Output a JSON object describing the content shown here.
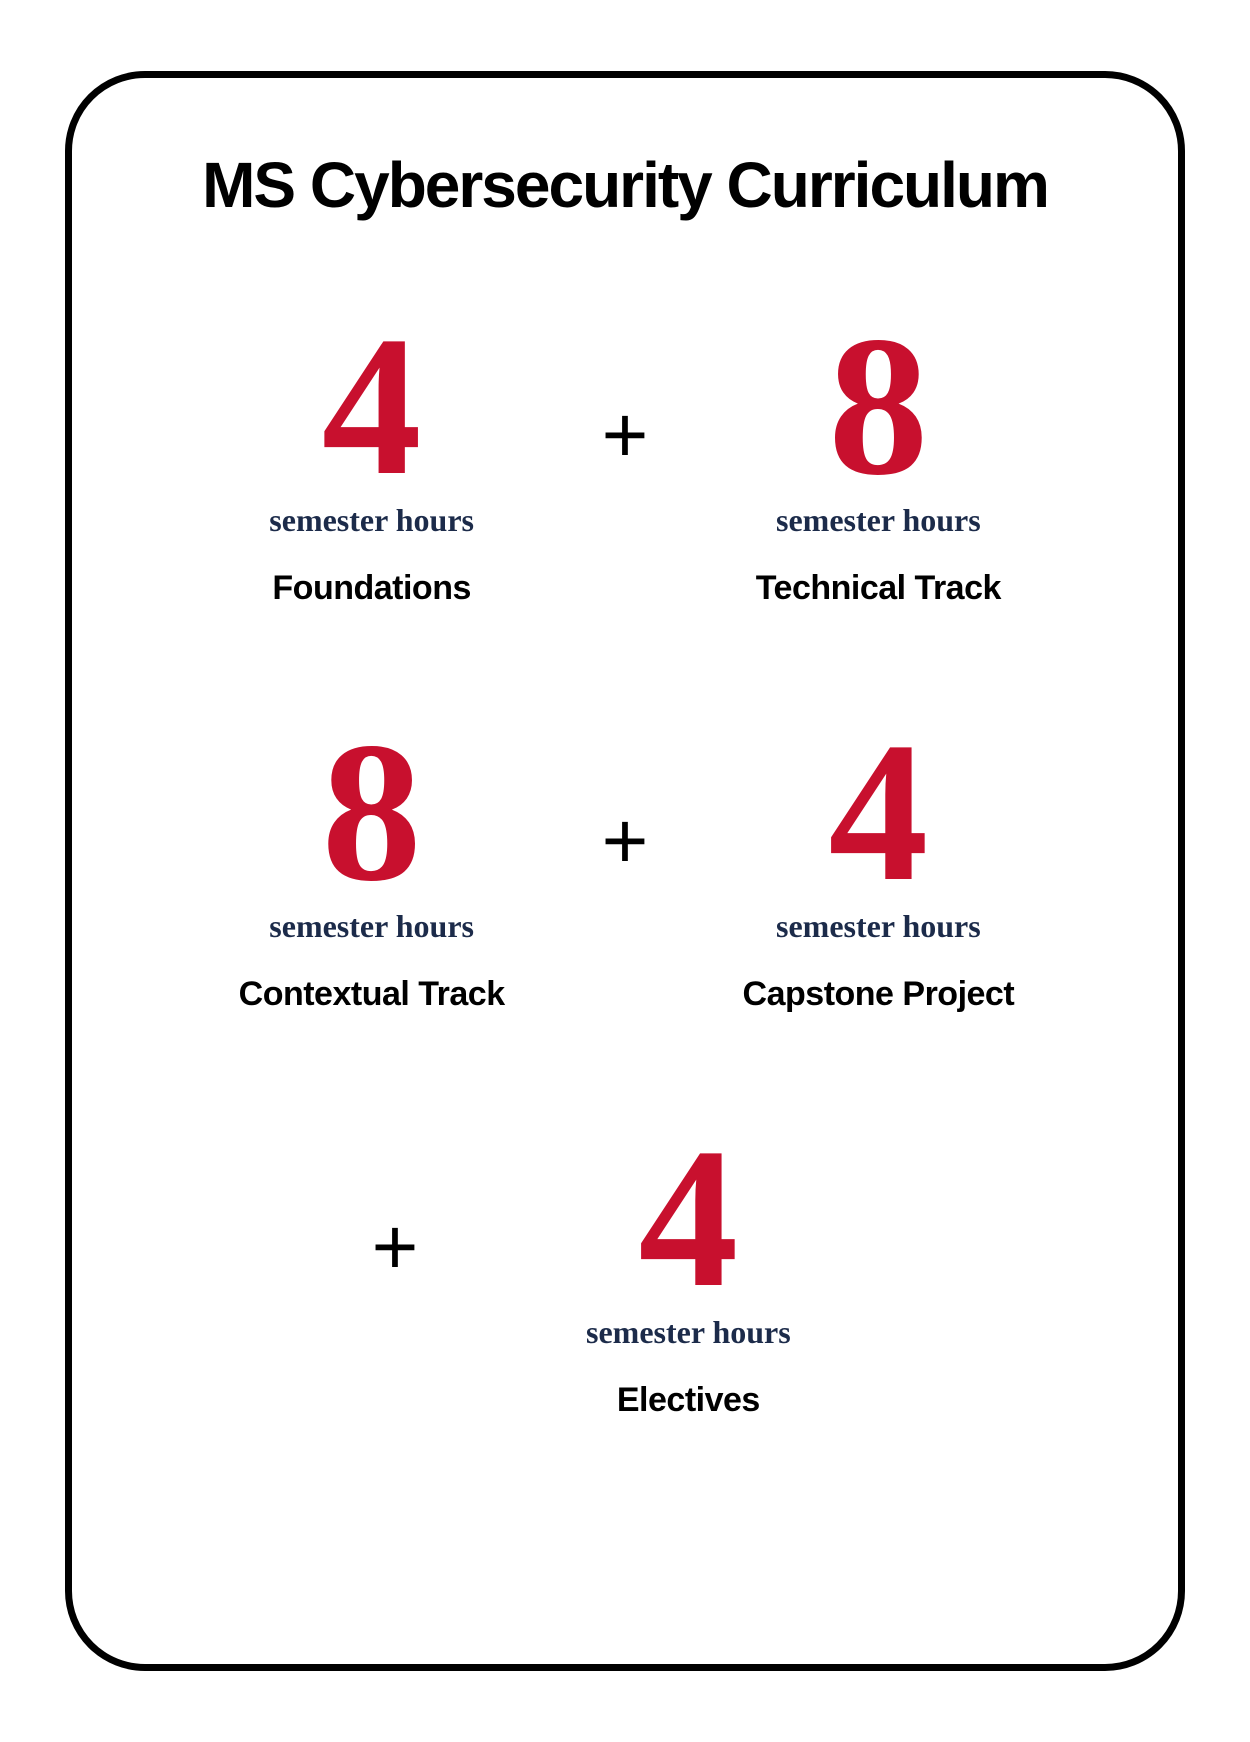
{
  "title": "MS Cybersecurity Curriculum",
  "plus_symbol": "+",
  "unit_text": "semester hours",
  "blocks": [
    {
      "number": "4",
      "category": "Foundations"
    },
    {
      "number": "8",
      "category": "Technical Track"
    },
    {
      "number": "8",
      "category": "Contextual Track"
    },
    {
      "number": "4",
      "category": "Capstone Project"
    },
    {
      "number": "4",
      "category": "Electives"
    }
  ],
  "styling": {
    "number_color": "#c8102e",
    "unit_color": "#1c2b4a",
    "category_color": "#000000",
    "title_color": "#000000",
    "border_color": "#000000",
    "background_color": "#ffffff",
    "number_fontsize": 200,
    "number_fontfamily": "Georgia serif",
    "unit_fontsize": 32,
    "unit_fontfamily": "Georgia serif",
    "category_fontsize": 34,
    "title_fontsize": 64,
    "plus_fontsize": 80,
    "border_width": 7,
    "border_radius": 80,
    "container_width": 1120,
    "container_height": 1600
  }
}
